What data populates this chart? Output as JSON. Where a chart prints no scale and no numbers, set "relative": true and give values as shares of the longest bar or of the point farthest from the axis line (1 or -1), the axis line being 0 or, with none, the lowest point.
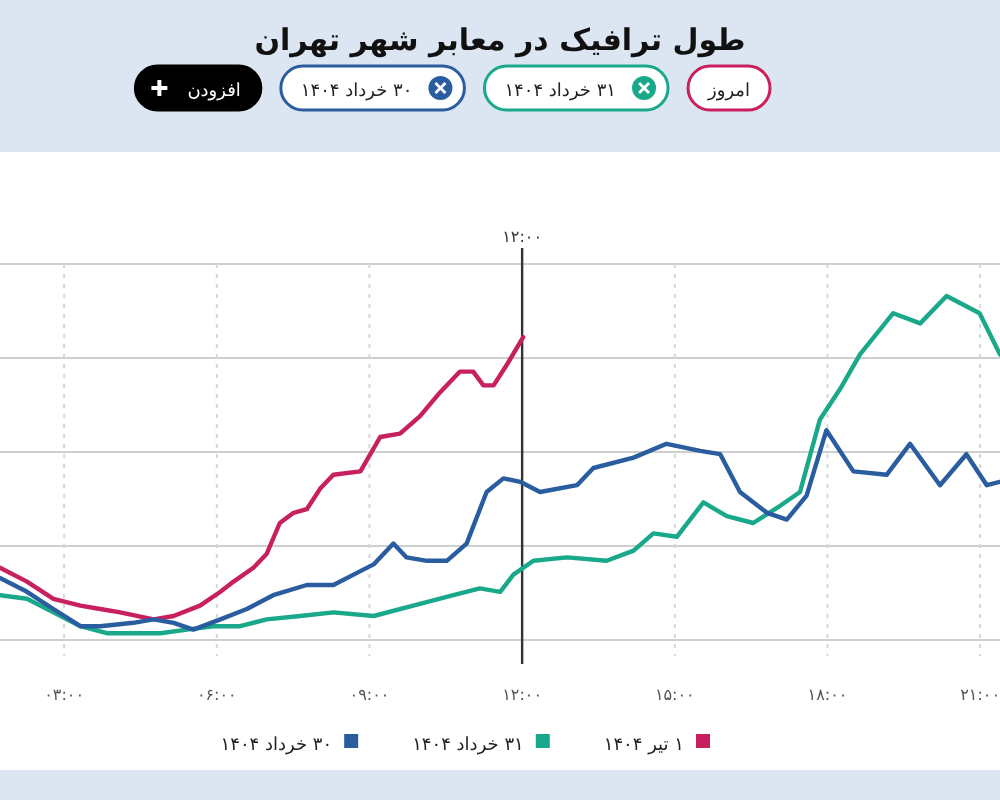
{
  "chart_data": {
    "type": "line",
    "title": "طول ترافیک در معابر شهر تهران",
    "relative": true,
    "grid": true,
    "legend": "bottom",
    "xlim": [
      1.74,
      21.39
    ],
    "xticks": [
      {
        "value": 3,
        "label": "۰۳:۰۰"
      },
      {
        "value": 6,
        "label": "۰۶:۰۰"
      },
      {
        "value": 9,
        "label": "۰۹:۰۰"
      },
      {
        "value": 12,
        "label": "۱۲:۰۰"
      },
      {
        "value": 15,
        "label": "۱۵:۰۰"
      },
      {
        "value": 18,
        "label": "۱۸:۰۰"
      },
      {
        "value": 21,
        "label": "۲۱:۰۰"
      }
    ],
    "ref_lines": [
      {
        "axis": "x",
        "value": 12,
        "label": "۱۲:۰۰",
        "color": "#333333"
      }
    ],
    "annotations": [
      "امروز",
      "۳۱ خرداد ۱۴۰۴",
      "۳۰ خرداد ۱۴۰۴",
      "افزودن"
    ],
    "series": [
      {
        "name": "۱ تیر ۱۴۰۴",
        "color": "#c8205e",
        "x": [
          1.74,
          2.27,
          2.79,
          3.32,
          3.71,
          4.1,
          4.76,
          5.15,
          5.67,
          6.07,
          6.33,
          6.72,
          6.98,
          7.24,
          7.51,
          7.77,
          8.03,
          8.29,
          8.82,
          9.21,
          9.6,
          9.99,
          10.39,
          10.78,
          11.04,
          11.24,
          11.44,
          11.7,
          12.02
        ],
        "values": [
          0.21,
          0.17,
          0.12,
          0.1,
          0.09,
          0.08,
          0.06,
          0.07,
          0.1,
          0.14,
          0.17,
          0.21,
          0.25,
          0.34,
          0.37,
          0.38,
          0.44,
          0.48,
          0.49,
          0.59,
          0.6,
          0.65,
          0.72,
          0.78,
          0.78,
          0.74,
          0.74,
          0.8,
          0.88
        ]
      },
      {
        "name": "۳۱ خرداد ۱۴۰۴",
        "color": "#1aa88a",
        "x": [
          1.74,
          2.27,
          2.79,
          3.32,
          3.84,
          4.36,
          4.89,
          5.41,
          5.93,
          6.46,
          6.98,
          7.64,
          8.29,
          9.08,
          9.86,
          10.65,
          11.17,
          11.57,
          11.83,
          12.22,
          12.88,
          13.66,
          14.19,
          14.58,
          15.04,
          15.56,
          16.02,
          16.54,
          17.07,
          17.46,
          17.85,
          18.25,
          18.64,
          19.29,
          19.82,
          20.34,
          20.99,
          21.39
        ],
        "values": [
          0.13,
          0.12,
          0.08,
          0.04,
          0.02,
          0.02,
          0.02,
          0.03,
          0.04,
          0.04,
          0.06,
          0.07,
          0.08,
          0.07,
          0.1,
          0.13,
          0.15,
          0.14,
          0.19,
          0.23,
          0.24,
          0.23,
          0.26,
          0.31,
          0.3,
          0.4,
          0.36,
          0.34,
          0.39,
          0.43,
          0.64,
          0.73,
          0.83,
          0.95,
          0.92,
          1.0,
          0.95,
          0.83
        ]
      },
      {
        "name": "۳۰ خرداد ۱۴۰۴",
        "color": "#2a5d9f",
        "x": [
          1.74,
          2.27,
          2.79,
          3.32,
          3.71,
          4.36,
          4.76,
          5.15,
          5.54,
          6.07,
          6.59,
          7.11,
          7.77,
          8.29,
          8.69,
          9.08,
          9.47,
          9.73,
          10.13,
          10.52,
          10.91,
          11.3,
          11.63,
          11.96,
          12.35,
          13.08,
          13.4,
          14.19,
          14.84,
          15.5,
          15.89,
          16.28,
          16.81,
          17.2,
          17.59,
          17.98,
          18.51,
          19.16,
          19.62,
          20.21,
          20.73,
          21.13,
          21.39
        ],
        "values": [
          0.18,
          0.14,
          0.09,
          0.04,
          0.04,
          0.05,
          0.06,
          0.05,
          0.03,
          0.06,
          0.09,
          0.13,
          0.16,
          0.16,
          0.19,
          0.22,
          0.28,
          0.24,
          0.23,
          0.23,
          0.28,
          0.43,
          0.47,
          0.46,
          0.43,
          0.45,
          0.5,
          0.53,
          0.57,
          0.55,
          0.54,
          0.43,
          0.37,
          0.35,
          0.42,
          0.61,
          0.49,
          0.48,
          0.57,
          0.45,
          0.54,
          0.45,
          0.46
        ]
      }
    ]
  }
}
